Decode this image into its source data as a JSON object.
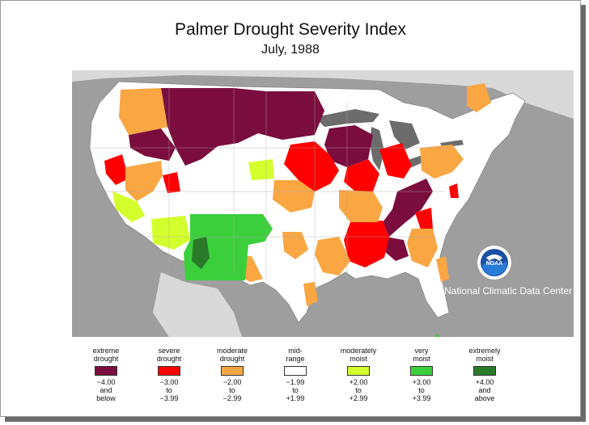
{
  "title": "Palmer Drought Severity Index",
  "subtitle": "July, 1988",
  "credit": "National Climatic Data Center",
  "logo_text": "NOAA",
  "colors": {
    "background": "#9e9e9e",
    "land": "#ffffff",
    "water": "#6c6c6c",
    "extreme": "#7a0d3e",
    "severe": "#ff0000",
    "moderate": "#f9a643",
    "mid": "#ffffff",
    "moderately_moist": "#d3ff2c",
    "very_moist": "#3ccf3c",
    "extremely_moist": "#2a7a2a"
  },
  "legend": [
    {
      "label1": "extreme",
      "label2": "drought",
      "range1": "−4.00",
      "range2": "and",
      "range3": "below",
      "color": "#7a0d3e"
    },
    {
      "label1": "severe",
      "label2": "drought",
      "range1": "−3.00",
      "range2": "to",
      "range3": "−3.99",
      "color": "#ff0000"
    },
    {
      "label1": "moderate",
      "label2": "drought",
      "range1": "−2.00",
      "range2": "to",
      "range3": "−2.99",
      "color": "#f9a643"
    },
    {
      "label1": "mid-",
      "label2": "range",
      "range1": "−1.99",
      "range2": "to",
      "range3": "+1.99",
      "color": "#ffffff"
    },
    {
      "label1": "moderately",
      "label2": "moist",
      "range1": "+2.00",
      "range2": "to",
      "range3": "+2.99",
      "color": "#d3ff2c"
    },
    {
      "label1": "very",
      "label2": "moist",
      "range1": "+3.00",
      "range2": "to",
      "range3": "+3.99",
      "color": "#3ccf3c"
    },
    {
      "label1": "extremely",
      "label2": "moist",
      "range1": "+4.00",
      "range2": "and",
      "range3": "above",
      "color": "#2a7a2a"
    }
  ]
}
